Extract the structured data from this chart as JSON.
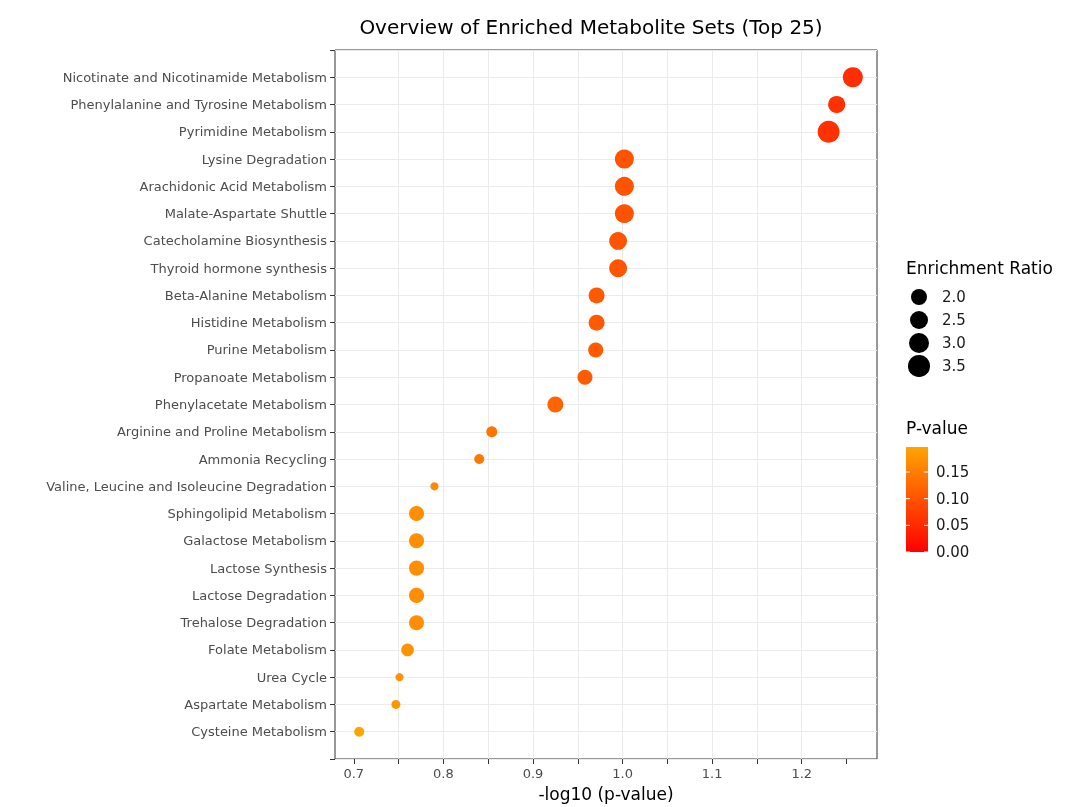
{
  "chart_data": {
    "type": "bubble",
    "title": "Overview of Enriched Metabolite Sets (Top 25)",
    "xlabel": "-log10 (p-value)",
    "legend_title": "Enrichment Ratio",
    "clabel": "P-value",
    "categories": [
      "Nicotinate and Nicotinamide Metabolism",
      "Phenylalanine and Tyrosine Metabolism",
      "Pyrimidine Metabolism",
      "Lysine Degradation",
      "Arachidonic Acid Metabolism",
      "Malate-Aspartate Shuttle",
      "Catecholamine Biosynthesis",
      "Thyroid hormone synthesis",
      "Beta-Alanine Metabolism",
      "Histidine Metabolism",
      "Purine Metabolism",
      "Propanoate Metabolism",
      "Phenylacetate Metabolism",
      "Arginine and Proline Metabolism",
      "Ammonia Recycling",
      "Valine, Leucine and Isoleucine Degradation",
      "Sphingolipid Metabolism",
      "Galactose Metabolism",
      "Lactose Synthesis",
      "Lactose Degradation",
      "Trehalose Degradation",
      "Folate Metabolism",
      "Urea Cycle",
      "Aspartate Metabolism",
      "Cysteine Metabolism"
    ],
    "values": [
      1.257,
      1.239,
      1.23,
      1.002,
      1.002,
      1.002,
      0.995,
      0.995,
      0.971,
      0.971,
      0.97,
      0.958,
      0.925,
      0.854,
      0.84,
      0.79,
      0.77,
      0.77,
      0.77,
      0.77,
      0.77,
      0.76,
      0.751,
      0.747,
      0.706
    ],
    "sizes": [
      3.0,
      2.2,
      3.6,
      2.7,
      2.7,
      2.7,
      2.4,
      2.4,
      1.9,
      1.9,
      1.7,
      1.7,
      1.9,
      0.9,
      0.75,
      0.5,
      1.7,
      1.7,
      1.7,
      1.7,
      1.7,
      1.2,
      0.5,
      0.6,
      0.75
    ],
    "cvalues": [
      0.055,
      0.058,
      0.059,
      0.0995,
      0.0995,
      0.0995,
      0.101,
      0.101,
      0.107,
      0.107,
      0.107,
      0.11,
      0.119,
      0.14,
      0.145,
      0.162,
      0.17,
      0.17,
      0.17,
      0.17,
      0.17,
      0.174,
      0.177,
      0.179,
      0.197
    ],
    "size_legend": [
      {
        "value": 2,
        "label": "2.0"
      },
      {
        "value": 2.5,
        "label": "2.5"
      },
      {
        "value": 3,
        "label": "3.0"
      },
      {
        "value": 3.5,
        "label": "3.5"
      }
    ],
    "orientation": "horizontal",
    "clim": [
      0,
      0.197
    ],
    "cticks": [
      {
        "value": 0,
        "label": "0.00"
      },
      {
        "value": 0.05,
        "label": "0.05"
      },
      {
        "value": 0.1,
        "label": "0.10"
      },
      {
        "value": 0.15,
        "label": "0.15"
      }
    ],
    "xlim": [
      0.679,
      1.284
    ],
    "xticks": [
      {
        "value": 0.7,
        "label": "0.7"
      },
      {
        "value": 0.75,
        "label": null
      },
      {
        "value": 0.8,
        "label": "0.8"
      },
      {
        "value": 0.85,
        "label": null
      },
      {
        "value": 0.9,
        "label": "0.9"
      },
      {
        "value": 0.95,
        "label": null
      },
      {
        "value": 1,
        "label": "1.0"
      },
      {
        "value": 1.05,
        "label": null
      },
      {
        "value": 1.1,
        "label": "1.1"
      },
      {
        "value": 1.15,
        "label": null
      },
      {
        "value": 1.2,
        "label": "1.2"
      },
      {
        "value": 1.25,
        "label": null
      }
    ],
    "grid": true,
    "marker": "circle"
  }
}
